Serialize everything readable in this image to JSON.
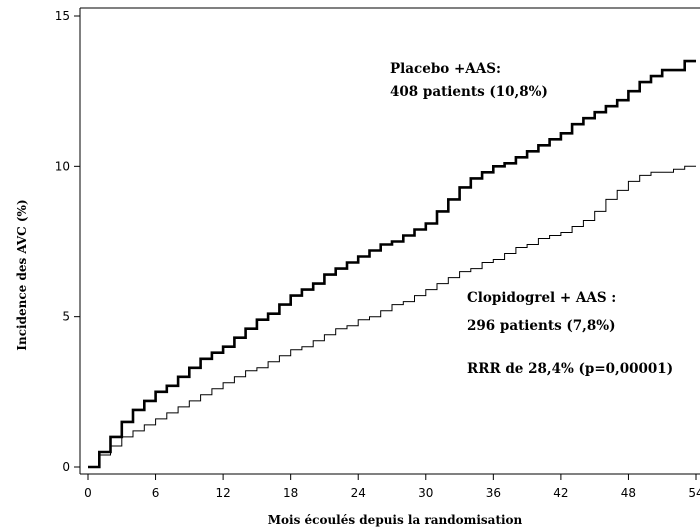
{
  "chart_data": {
    "type": "line",
    "title": "",
    "xlabel": "Mois écoulés depuis la randomisation",
    "ylabel": "Incidence des AVC (%)",
    "xlim": [
      0,
      54
    ],
    "ylim": [
      0,
      15
    ],
    "x_ticks": [
      "0",
      "6",
      "12",
      "18",
      "24",
      "30",
      "36",
      "42",
      "48",
      "54"
    ],
    "y_ticks": [
      "0",
      "5",
      "10",
      "15"
    ],
    "grid": false,
    "legend": "none",
    "series": [
      {
        "color": "#000000",
        "style": "thick",
        "x": [
          0,
          1,
          2,
          3,
          4,
          5,
          6,
          7,
          8,
          9,
          10,
          11,
          12,
          13,
          14,
          15,
          16,
          17,
          18,
          19,
          20,
          21,
          22,
          23,
          24,
          25,
          26,
          27,
          28,
          29,
          30,
          31,
          32,
          33,
          34,
          35,
          36,
          37,
          38,
          39,
          40,
          41,
          42,
          43,
          44,
          45,
          46,
          47,
          48,
          49,
          50,
          51,
          52,
          53,
          54
        ],
        "values": [
          0,
          0.5,
          1.0,
          1.5,
          1.9,
          2.2,
          2.5,
          2.7,
          3.0,
          3.3,
          3.6,
          3.8,
          4.0,
          4.3,
          4.6,
          4.9,
          5.1,
          5.4,
          5.7,
          5.9,
          6.1,
          6.4,
          6.6,
          6.8,
          7.0,
          7.2,
          7.4,
          7.5,
          7.7,
          7.9,
          8.1,
          8.5,
          8.9,
          9.3,
          9.6,
          9.8,
          10.0,
          10.1,
          10.3,
          10.5,
          10.7,
          10.9,
          11.1,
          11.4,
          11.6,
          11.8,
          12.0,
          12.2,
          12.5,
          12.8,
          13.0,
          13.2,
          13.2,
          13.5,
          13.5
        ]
      },
      {
        "color": "#000000",
        "style": "thin",
        "x": [
          0,
          1,
          2,
          3,
          4,
          5,
          6,
          7,
          8,
          9,
          10,
          11,
          12,
          13,
          14,
          15,
          16,
          17,
          18,
          19,
          20,
          21,
          22,
          23,
          24,
          25,
          26,
          27,
          28,
          29,
          30,
          31,
          32,
          33,
          34,
          35,
          36,
          37,
          38,
          39,
          40,
          41,
          42,
          43,
          44,
          45,
          46,
          47,
          48,
          49,
          50,
          51,
          52,
          53,
          54
        ],
        "values": [
          0,
          0.4,
          0.7,
          1.0,
          1.2,
          1.4,
          1.6,
          1.8,
          2.0,
          2.2,
          2.4,
          2.6,
          2.8,
          3.0,
          3.2,
          3.3,
          3.5,
          3.7,
          3.9,
          4.0,
          4.2,
          4.4,
          4.6,
          4.7,
          4.9,
          5.0,
          5.2,
          5.4,
          5.5,
          5.7,
          5.9,
          6.1,
          6.3,
          6.5,
          6.6,
          6.8,
          6.9,
          7.1,
          7.3,
          7.4,
          7.6,
          7.7,
          7.8,
          8.0,
          8.2,
          8.5,
          8.9,
          9.2,
          9.5,
          9.7,
          9.8,
          9.8,
          9.9,
          10.0,
          10.0
        ]
      }
    ],
    "annotations": {
      "placebo_line1": "Placebo +AAS:",
      "placebo_line2": "408 patients (10,8%)",
      "clopi_line1": "Clopidogrel + AAS :",
      "clopi_line2": "296 patients (7,8%)",
      "rrr": "RRR  de 28,4% (p=0,00001)"
    }
  }
}
